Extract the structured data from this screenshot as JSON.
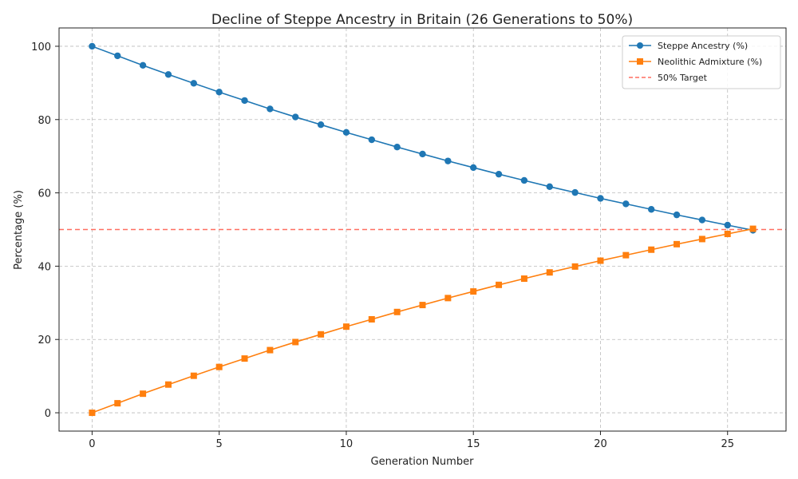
{
  "chart_data": {
    "type": "line",
    "title": "Decline of Steppe Ancestry in Britain (26 Generations to 50%)",
    "xlabel": "Generation Number",
    "ylabel": "Percentage (%)",
    "xlim": [
      -1.3,
      27.3
    ],
    "ylim": [
      -5,
      105
    ],
    "xticks": [
      0,
      5,
      10,
      15,
      20,
      25
    ],
    "yticks": [
      0,
      20,
      40,
      60,
      80,
      100
    ],
    "grid": true,
    "legend_position": "top-right",
    "x": [
      0,
      1,
      2,
      3,
      4,
      5,
      6,
      7,
      8,
      9,
      10,
      11,
      12,
      13,
      14,
      15,
      16,
      17,
      18,
      19,
      20,
      21,
      22,
      23,
      24,
      25,
      26
    ],
    "series": [
      {
        "name": "Steppe Ancestry (%)",
        "color": "#1f77b4",
        "marker": "circle",
        "values": [
          100,
          97.4,
          94.8,
          92.3,
          89.9,
          87.5,
          85.2,
          82.9,
          80.7,
          78.6,
          76.5,
          74.5,
          72.5,
          70.6,
          68.7,
          66.9,
          65.1,
          63.4,
          61.7,
          60.1,
          58.5,
          57.0,
          55.5,
          54.0,
          52.6,
          51.2,
          49.8
        ]
      },
      {
        "name": "Neolithic Admixture (%)",
        "color": "#ff7f0e",
        "marker": "square",
        "values": [
          0,
          2.6,
          5.2,
          7.7,
          10.1,
          12.5,
          14.8,
          17.1,
          19.3,
          21.4,
          23.5,
          25.5,
          27.5,
          29.4,
          31.3,
          33.1,
          34.9,
          36.6,
          38.3,
          39.9,
          41.5,
          43.0,
          44.5,
          46.0,
          47.4,
          48.8,
          50.2
        ]
      }
    ],
    "reference_lines": [
      {
        "name": "50% Target",
        "y": 50,
        "color": "#ff6f61",
        "style": "dashed"
      }
    ]
  }
}
